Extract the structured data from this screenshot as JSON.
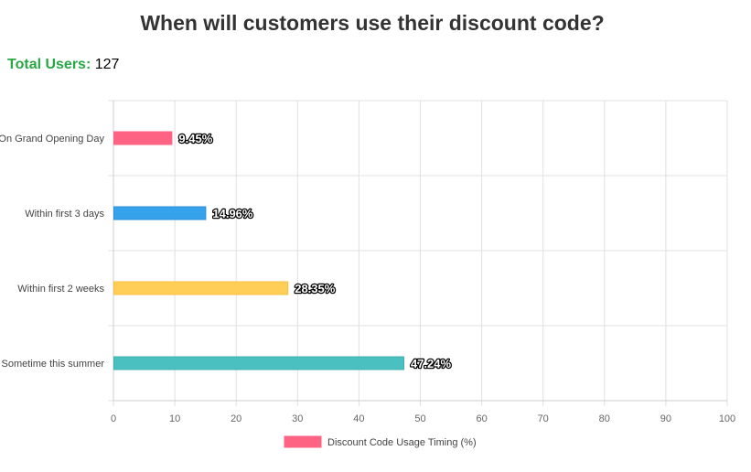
{
  "header": {
    "title": "When will customers use their discount code?",
    "total_label": "Total Users:",
    "total_value": "127"
  },
  "colors": {
    "total_label": "#28a745",
    "grid": "#e0e0e0",
    "bars": [
      "#ff6384",
      "#36a2eb",
      "#ffce56",
      "#4bc0c0"
    ],
    "bar_borders": [
      "#ff6384",
      "#2d8fd6",
      "#f5c242",
      "#3fb0b0"
    ]
  },
  "chart_data": {
    "type": "bar",
    "orientation": "horizontal",
    "categories": [
      "On Grand Opening Day",
      "Within first 3 days",
      "Within first 2 weeks",
      "Sometime this summer"
    ],
    "series": [
      {
        "name": "Discount Code Usage Timing (%)",
        "values": [
          9.45,
          14.96,
          28.35,
          47.24
        ]
      }
    ],
    "data_labels": [
      "9.45%",
      "14.96%",
      "28.35%",
      "47.24%"
    ],
    "xlim": [
      0,
      100
    ],
    "x_ticks": [
      0,
      10,
      20,
      30,
      40,
      50,
      60,
      70,
      80,
      90,
      100
    ],
    "grid": true,
    "legend_position": "bottom"
  }
}
